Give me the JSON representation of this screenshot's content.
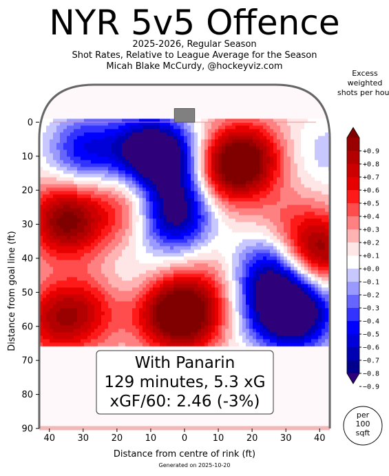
{
  "header": {
    "title": "NYR 5v5 Offence",
    "subtitle_1": "2025-2026, Regular Season",
    "subtitle_2": "Shot Rates, Relative to League Average for the Season",
    "subtitle_3": "Micah Blake McCurdy, @hockeyviz.com"
  },
  "footer": {
    "generated": "Generated on 2025-10-20"
  },
  "chart_data": {
    "type": "heatmap",
    "xlabel": "Distance from centre of rink (ft)",
    "ylabel": "Distance from goal line (ft)",
    "xlim": [
      43,
      -43
    ],
    "ylim": [
      90,
      -11
    ],
    "x_ticks": [
      40,
      30,
      20,
      10,
      0,
      10,
      20,
      30,
      40
    ],
    "x_tick_values": [
      40,
      30,
      20,
      10,
      0,
      -10,
      -20,
      -30,
      -40
    ],
    "y_ticks": [
      0,
      10,
      20,
      30,
      40,
      50,
      60,
      70,
      80,
      90
    ],
    "grid": false,
    "colorbar": {
      "title": "Excess weighted shots per hour",
      "ticks": [
        "+0.9",
        "+0.8",
        "+0.7",
        "+0.6",
        "+0.5",
        "+0.4",
        "+0.3",
        "+0.2",
        "+0.1",
        "+0.0",
        "−0.1",
        "−0.2",
        "−0.3",
        "−0.4",
        "−0.5",
        "−0.6",
        "−0.7",
        "−0.8",
        "−0.9"
      ],
      "colors": [
        "#800000",
        "#990000",
        "#b30000",
        "#cc0000",
        "#e60000",
        "#ff1a1a",
        "#ff4d4d",
        "#ff8080",
        "#ffb3b3",
        "#ffe6e6",
        "#ffffff",
        "#c8c8ff",
        "#9999ff",
        "#6666ff",
        "#3333ff",
        "#0000ff",
        "#0000d9",
        "#0000b3",
        "#00008c",
        "#2e007a"
      ],
      "unit_badge": "per\n100\nsqft"
    },
    "annotation": {
      "line1": "With Panarin",
      "line2": "129 minutes, 5.3 xG",
      "line3": "xGF/60: 2.46 (-3%)"
    },
    "blobs": [
      {
        "x": 35,
        "y": 29,
        "v": 0.9
      },
      {
        "x": 28,
        "y": 55,
        "v": 0.4
      },
      {
        "x": 38,
        "y": 58,
        "v": 0.6
      },
      {
        "x": 0,
        "y": 57,
        "v": 1.0
      },
      {
        "x": 8,
        "y": 54,
        "v": 0.4
      },
      {
        "x": -18,
        "y": 11,
        "v": 0.9
      },
      {
        "x": -10,
        "y": 15,
        "v": 0.5
      },
      {
        "x": -40,
        "y": 38,
        "v": 0.8
      },
      {
        "x": -31,
        "y": 30,
        "v": 0.2
      },
      {
        "x": 17,
        "y": 23,
        "v": 0.3
      },
      {
        "x": 20,
        "y": 30,
        "v": 0.1
      },
      {
        "x": 30,
        "y": 8,
        "v": -0.6
      },
      {
        "x": 14,
        "y": 8,
        "v": -0.6
      },
      {
        "x": 6,
        "y": 10,
        "v": -0.9
      },
      {
        "x": 3,
        "y": 28,
        "v": -0.8
      },
      {
        "x": 0,
        "y": 20,
        "v": -0.3
      },
      {
        "x": 14,
        "y": 48,
        "v": -0.2
      },
      {
        "x": -25,
        "y": 44,
        "v": -0.7
      },
      {
        "x": -27,
        "y": 56,
        "v": -0.7
      },
      {
        "x": -35,
        "y": 56,
        "v": -0.8
      },
      {
        "x": -42,
        "y": 9,
        "v": -0.2
      },
      {
        "x": -8,
        "y": 48,
        "v": 0.2
      }
    ]
  }
}
